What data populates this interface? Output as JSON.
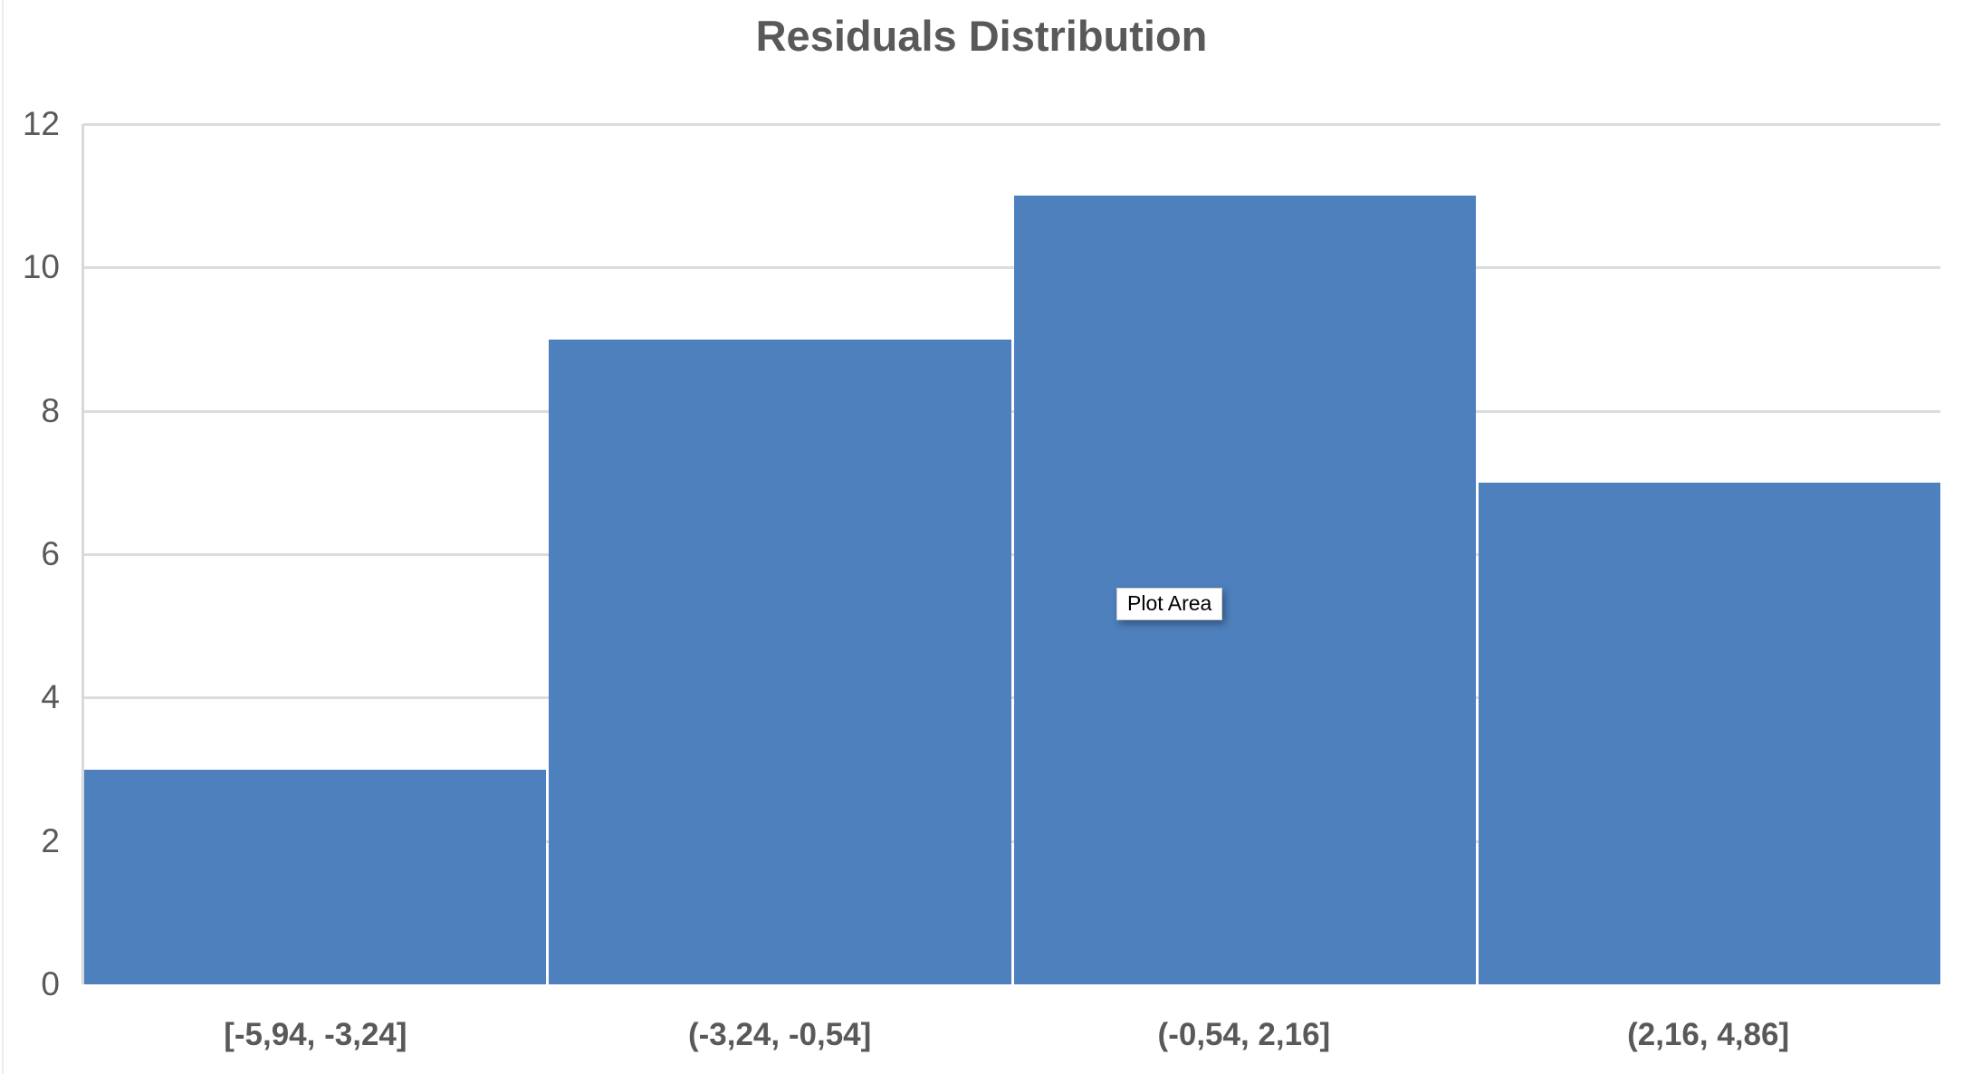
{
  "chart_data": {
    "type": "bar",
    "title": "Residuals Distribution",
    "categories": [
      "[-5,94, -3,24]",
      "(-3,24, -0,54]",
      "(-0,54, 2,16]",
      "(2,16, 4,86]"
    ],
    "values": [
      3,
      9,
      11,
      7
    ],
    "xlabel": "",
    "ylabel": "",
    "ylim": [
      0,
      12
    ],
    "yticks": [
      0,
      2,
      4,
      6,
      8,
      10,
      12
    ],
    "grid": true,
    "legend": "none",
    "bar_color": "#4e80bd",
    "gridline_color": "#dcdcdc",
    "axis_line_color": "#d9d9d9",
    "title_color": "#595959",
    "tick_label_color": "#595959"
  },
  "tooltip": {
    "label": "Plot Area"
  }
}
